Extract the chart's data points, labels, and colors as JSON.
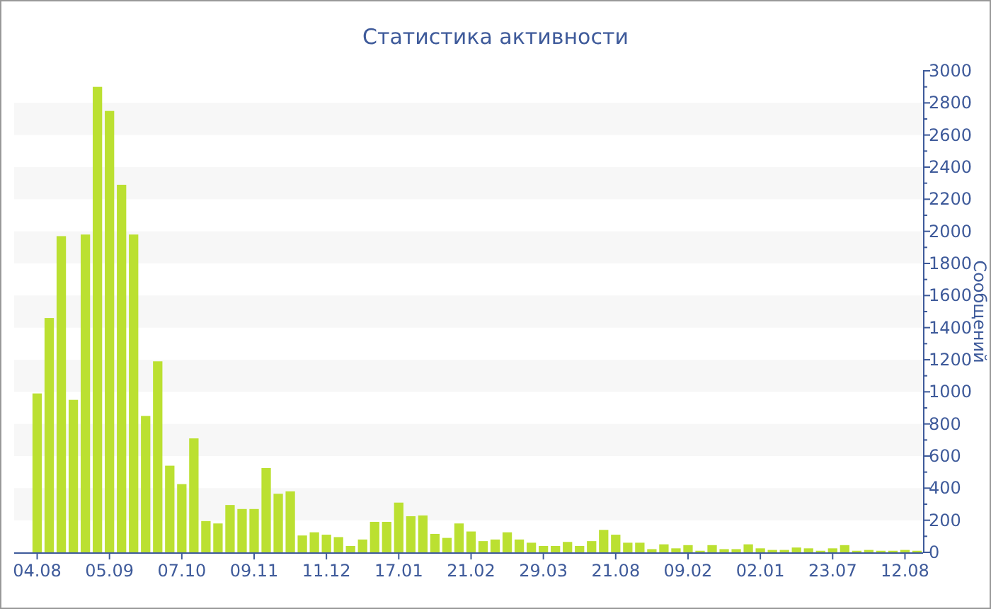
{
  "chart_data": {
    "type": "bar",
    "title": "Статистика активности",
    "ylabel": "Сообщений",
    "categories": [
      "04.08",
      null,
      null,
      null,
      null,
      null,
      "05.09",
      null,
      null,
      null,
      null,
      null,
      "07.10",
      null,
      null,
      null,
      null,
      null,
      "09.11",
      null,
      null,
      null,
      null,
      null,
      "11.12",
      null,
      null,
      null,
      null,
      null,
      "17.01",
      null,
      null,
      null,
      null,
      null,
      "21.02",
      null,
      null,
      null,
      null,
      null,
      "29.03",
      null,
      null,
      null,
      null,
      null,
      "21.08",
      null,
      null,
      null,
      null,
      null,
      "09.02",
      null,
      null,
      null,
      null,
      null,
      "02.01",
      null,
      null,
      null,
      null,
      null,
      "23.07",
      null,
      null,
      null,
      null,
      null,
      "12.08",
      null
    ],
    "values": [
      990,
      1460,
      1970,
      950,
      1980,
      2900,
      2750,
      2290,
      1980,
      850,
      1190,
      540,
      425,
      710,
      195,
      180,
      295,
      270,
      270,
      525,
      365,
      380,
      105,
      125,
      110,
      95,
      40,
      80,
      190,
      190,
      310,
      225,
      230,
      115,
      90,
      180,
      130,
      70,
      80,
      125,
      80,
      60,
      40,
      40,
      65,
      40,
      70,
      140,
      110,
      60,
      60,
      20,
      50,
      25,
      45,
      10,
      45,
      20,
      20,
      50,
      25,
      15,
      15,
      30,
      25,
      10,
      25,
      45,
      10,
      15,
      10,
      10,
      15,
      10
    ],
    "color": "#bbe031",
    "ylim": [
      0,
      3000
    ],
    "yticks": [
      0,
      {
        "value": 100,
        "label": null
      },
      200,
      {
        "value": 300,
        "label": null
      },
      400,
      {
        "value": 500,
        "label": null
      },
      600,
      {
        "value": 700,
        "label": null
      },
      800,
      {
        "value": 900,
        "label": null
      },
      1000,
      {
        "value": 1100,
        "label": null
      },
      1200,
      {
        "value": 1300,
        "label": null
      },
      1400,
      {
        "value": 1500,
        "label": null
      },
      1600,
      {
        "value": 1700,
        "label": null
      },
      1800,
      {
        "value": 1900,
        "label": null
      },
      2000,
      {
        "value": 2100,
        "label": null
      },
      2200,
      {
        "value": 2300,
        "label": null
      },
      2400,
      {
        "value": 2500,
        "label": null
      },
      2600,
      {
        "value": 2700,
        "label": null
      },
      2800,
      {
        "value": 2900,
        "label": null
      },
      3000
    ],
    "bands": [
      {
        "axis": "y",
        "from": 200,
        "to": 400,
        "color": "#f7f7f7"
      },
      {
        "axis": "y",
        "from": 600,
        "to": 800,
        "color": "#f7f7f7"
      },
      {
        "axis": "y",
        "from": 1000,
        "to": 1200,
        "color": "#f7f7f7"
      },
      {
        "axis": "y",
        "from": 1400,
        "to": 1600,
        "color": "#f7f7f7"
      },
      {
        "axis": "y",
        "from": 1800,
        "to": 2000,
        "color": "#f7f7f7"
      },
      {
        "axis": "y",
        "from": 2200,
        "to": 2400,
        "color": "#f7f7f7"
      },
      {
        "axis": "y",
        "from": 2600,
        "to": 2800,
        "color": "#f7f7f7"
      }
    ],
    "grid": false
  }
}
